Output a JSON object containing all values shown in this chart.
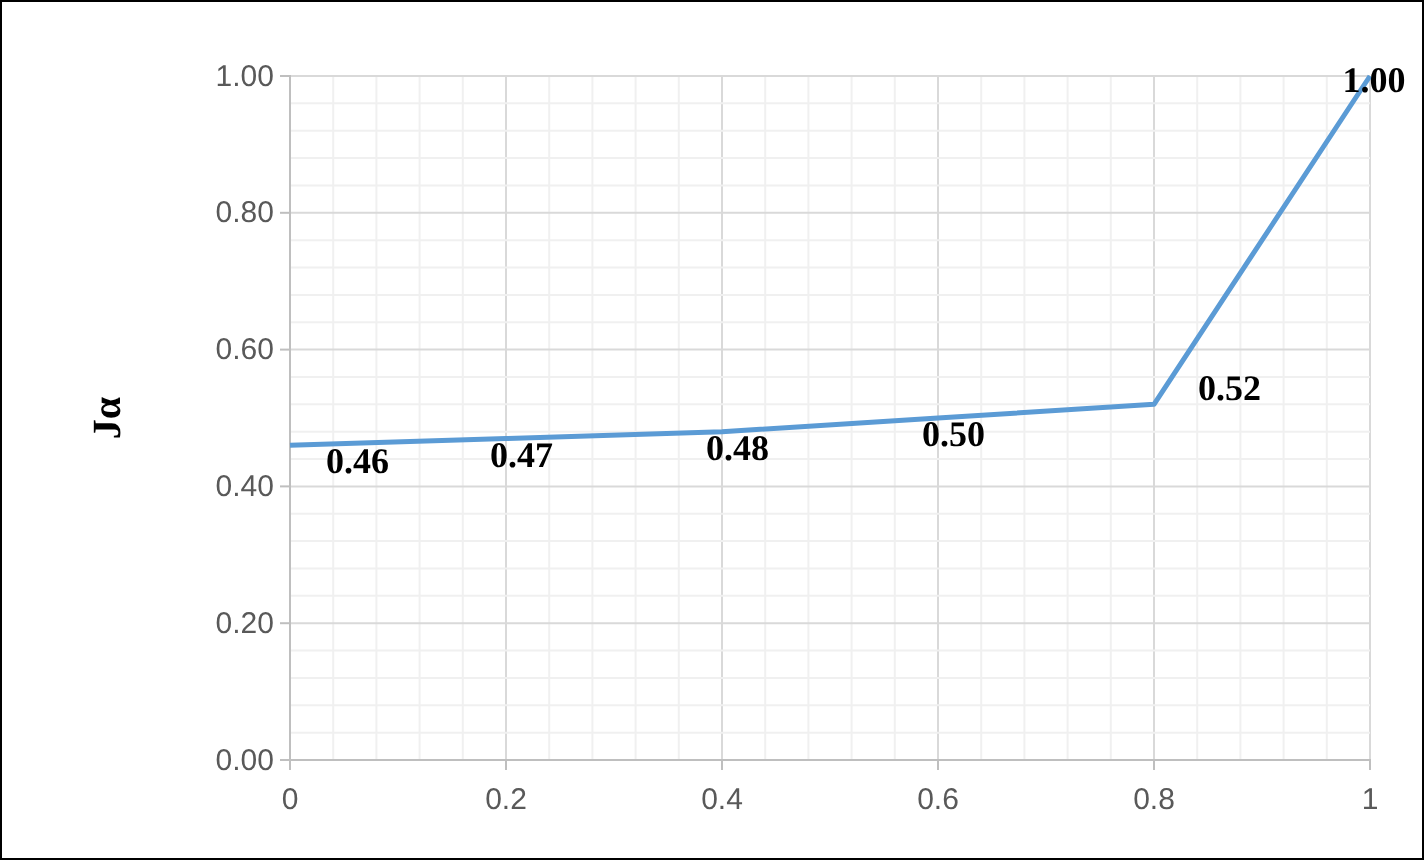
{
  "chart_data": {
    "type": "line",
    "ylabel": "Jα",
    "x": [
      0,
      0.2,
      0.4,
      0.6,
      0.8,
      1
    ],
    "series": [
      {
        "color": "#5b9bd5",
        "values": [
          0.46,
          0.47,
          0.48,
          0.5,
          0.52,
          1.0
        ],
        "value_labels": [
          "0.46",
          "0.47",
          "0.48",
          "0.50",
          "0.52",
          "1.00"
        ]
      }
    ],
    "xlim": [
      0,
      1
    ],
    "xticks": [
      0,
      0.2,
      0.4,
      0.6,
      0.8,
      1
    ],
    "ylim": [
      0,
      1
    ],
    "yticks": [
      {
        "value": 0,
        "label": "0.00"
      },
      {
        "value": 0.2,
        "label": "0.20"
      },
      {
        "value": 0.4,
        "label": "0.40"
      },
      {
        "value": 0.6,
        "label": "0.60"
      },
      {
        "value": 0.8,
        "label": "0.80"
      },
      {
        "value": 1,
        "label": "1.00"
      }
    ],
    "grid": true,
    "marker": "none",
    "line_style": "solid"
  }
}
